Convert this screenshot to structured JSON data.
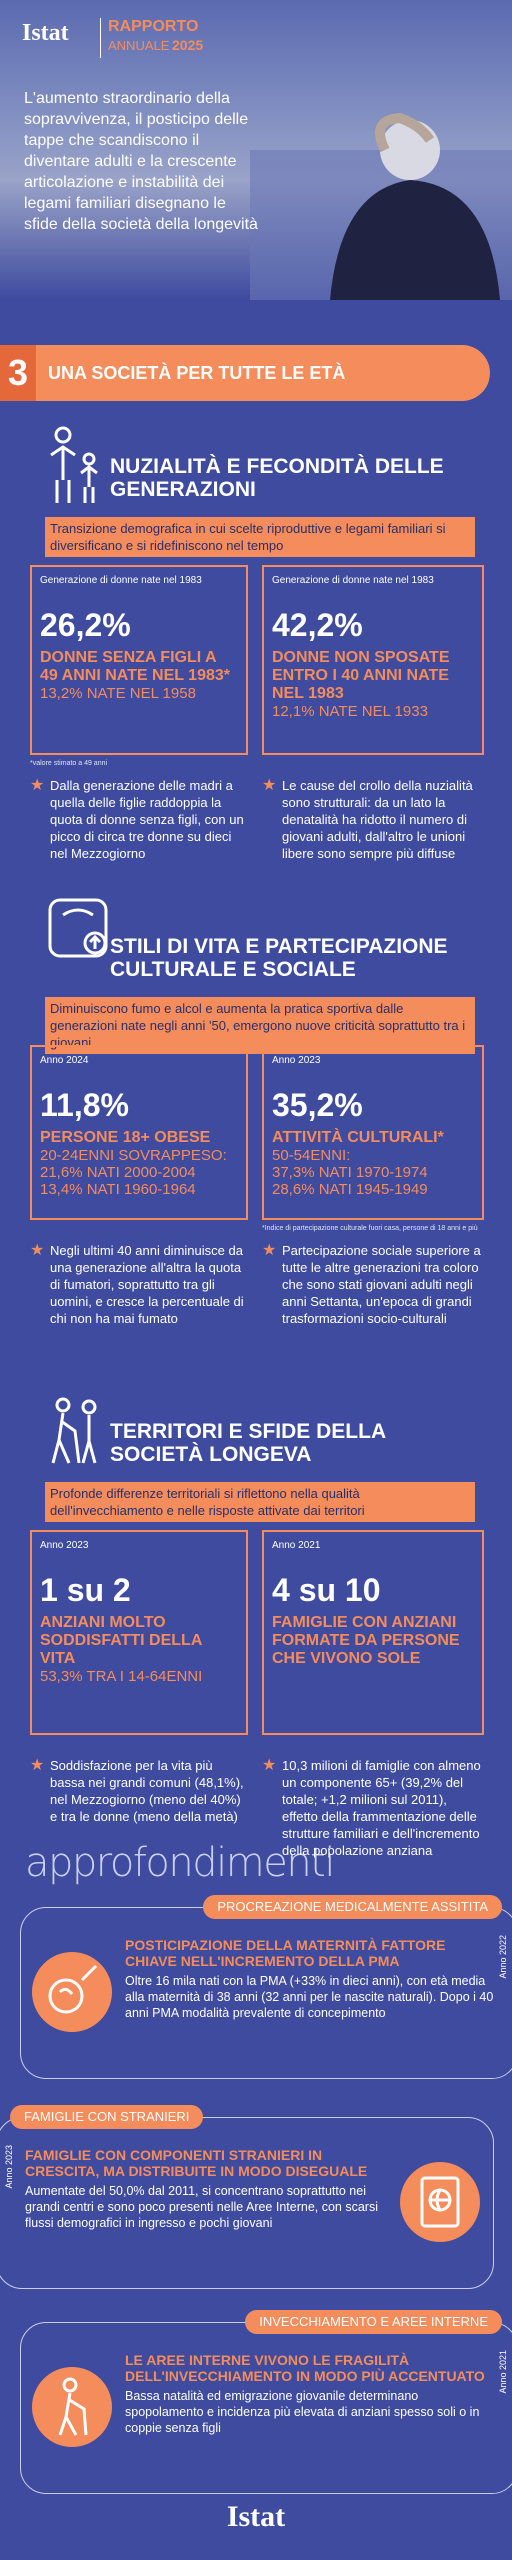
{
  "header": {
    "logo": "Istat",
    "report": "RAPPORTO",
    "edition_label": "ANNUALE",
    "edition_year": "2025",
    "intro": "L'aumento straordinario della sopravvivenza, il posticipo delle tappe che scandiscono il diventare adulti e la crescente articolazione e instabilità dei legami familiari disegnano le sfide della società della longevità"
  },
  "chapter": {
    "number": "3",
    "title": "UNA SOCIETÀ PER TUTTE LE ETÀ"
  },
  "sections": [
    {
      "title": "NUZIALITÀ E FECONDITÀ DELLE GENERAZIONI",
      "subtitle": "Transizione demografica in cui scelte riproduttive e legami familiari si diversificano e si ridefiniscono nel tempo",
      "cards": [
        {
          "caption": "Generazione di donne nate nel 1983",
          "value": "26,2%",
          "label": "DONNE SENZA FIGLI A 49 ANNI NATE NEL 1983*",
          "details": [
            "13,2% NATE NEL 1958"
          ]
        },
        {
          "caption": "Generazione di donne nate nel 1983",
          "value": "42,2%",
          "label": "DONNE NON SPOSATE ENTRO I 40 ANNI NATE NEL 1983",
          "details": [
            "12,1% NATE NEL 1933"
          ]
        }
      ],
      "footnote": "*valore stimato a 49 anni",
      "bullets": [
        "Dalla generazione delle madri a quella delle figlie raddoppia la quota di donne senza figli, con un picco di circa tre donne su dieci nel Mezzogiorno",
        "Le cause del crollo della nuzialità sono strutturali: da un lato la denatalità ha ridotto il numero di giovani adulti, dall'altro le unioni libere sono sempre più diffuse"
      ]
    },
    {
      "title": "STILI DI VITA E PARTECIPAZIONE CULTURALE E SOCIALE",
      "subtitle": "Diminuiscono fumo e alcol e aumenta la pratica sportiva dalle generazioni nate negli anni '50, emergono nuove criticità soprattutto tra i giovani",
      "cards": [
        {
          "caption": "Anno 2024",
          "value": "11,8%",
          "label": "PERSONE 18+ OBESE",
          "details": [
            "20-24ENNI SOVRAPPESO:",
            "21,6% NATI 2000-2004",
            "13,4% NATI 1960-1964"
          ]
        },
        {
          "caption": "Anno 2023",
          "value": "35,2%",
          "label": "ATTIVITÀ CULTURALI*",
          "details": [
            "50-54ENNI:",
            "37,3% NATI 1970-1974",
            "28,6% NATI 1945-1949"
          ]
        }
      ],
      "footnote": "*Indice di partecipazione culturale fuori casa, persone di 18 anni e più",
      "bullets": [
        "Negli ultimi 40 anni diminuisce da una generazione all'altra la quota di fumatori, soprattutto tra gli uomini, e cresce la percentuale di chi non ha mai fumato",
        "Partecipazione sociale superiore a tutte le altre generazioni tra coloro che sono stati giovani adulti negli anni Settanta, un'epoca di grandi trasformazioni socio-culturali"
      ]
    },
    {
      "title": "TERRITORI E SFIDE DELLA SOCIETÀ LONGEVA",
      "subtitle": "Profonde differenze territoriali si riflettono nella qualità dell'invecchiamento e nelle risposte attivate dai territori",
      "cards": [
        {
          "caption": "Anno 2023",
          "value": "1 su 2",
          "label": "ANZIANI MOLTO SODDISFATTI DELLA VITA",
          "details": [
            "53,3% TRA I 14-64ENNI"
          ]
        },
        {
          "caption": "Anno 2021",
          "value": "4 su 10",
          "label": "FAMIGLIE CON ANZIANI FORMATE DA PERSONE CHE VIVONO SOLE",
          "details": []
        }
      ],
      "bullets": [
        "Soddisfazione per la vita più bassa nei grandi comuni (48,1%), nel Mezzogiorno (meno del 40%) e tra le donne (meno della metà)",
        "10,3 milioni di famiglie con almeno un componente 65+ (39,2% del totale; +1,2 milioni sul 2011), effetto della frammentazione delle strutture familiari e dell'incremento della popolazione anziana"
      ]
    }
  ],
  "approfondimenti": {
    "title": "approfondimenti",
    "items": [
      {
        "tag": "PROCREAZIONE MEDICALMENTE ASSITITA",
        "year": "Anno 2022",
        "title": "POSTICIPAZIONE DELLA MATERNITÀ FATTORE CHIAVE NELL'INCREMENTO DELLA PMA",
        "text": "Oltre 16 mila nati con la PMA (+33% in dieci anni), con età media alla maternità di 38 anni (32 anni per le nascite naturali). Dopo i 40 anni PMA modalità prevalente di concepimento"
      },
      {
        "tag": "FAMIGLIE CON STRANIERI",
        "year": "Anno 2023",
        "title": "FAMIGLIE CON COMPONENTI STRANIERI IN CRESCITA, MA DISTRIBUITE IN MODO DISEGUALE",
        "text": "Aumentate del 50,0% dal 2011, si concentrano soprattutto nei grandi centri e sono poco presenti nelle Aree Interne, con scarsi flussi demografici in ingresso e pochi giovani"
      },
      {
        "tag": "INVECCHIAMENTO E AREE INTERNE",
        "year": "Anno 2021",
        "title": "LE AREE INTERNE VIVONO LE FRAGILITÀ DELL'INVECCHIAMENTO IN MODO PIÙ ACCENTUATO",
        "text": "Bassa natalità ed emigrazione giovanile determinano spopolamento e incidenza più elevata di anziani spesso soli o in coppie senza figli"
      }
    ]
  },
  "footer": {
    "logo": "Istat"
  }
}
